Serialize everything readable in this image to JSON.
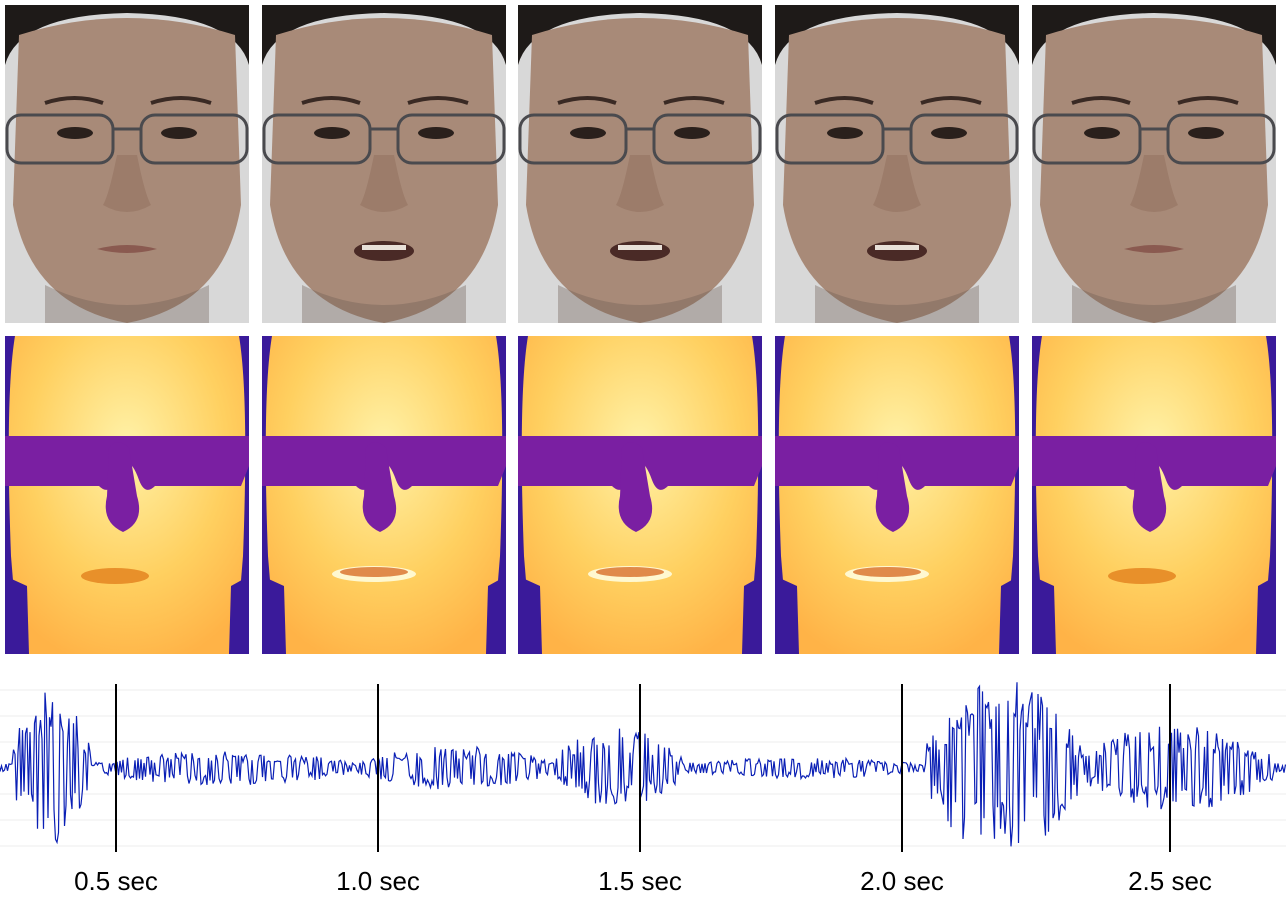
{
  "frames": {
    "count": 5,
    "rgb_row": [
      "face-rgb-1",
      "face-rgb-2",
      "face-rgb-3",
      "face-rgb-4",
      "face-rgb-5"
    ],
    "thermal_row": [
      "face-thermal-1",
      "face-thermal-2",
      "face-thermal-3",
      "face-thermal-4",
      "face-thermal-5"
    ],
    "mouth_open": [
      false,
      true,
      true,
      true,
      false
    ]
  },
  "waveform": {
    "color": "#0a1fb5",
    "marker_color": "#000000",
    "time_markers": [
      {
        "t": 0.5,
        "label": "0.5 sec"
      },
      {
        "t": 1.0,
        "label": "1.0 sec"
      },
      {
        "t": 1.5,
        "label": "1.5 sec"
      },
      {
        "t": 2.0,
        "label": "2.0 sec"
      },
      {
        "t": 2.5,
        "label": "2.5 sec"
      }
    ],
    "bursts": [
      {
        "start": 0.01,
        "end": 0.07,
        "amp": 0.9
      },
      {
        "start": 0.07,
        "end": 0.28,
        "amp": 0.2
      },
      {
        "start": 0.28,
        "end": 0.43,
        "amp": 0.25
      },
      {
        "start": 0.43,
        "end": 0.53,
        "amp": 0.45
      },
      {
        "start": 0.53,
        "end": 0.72,
        "amp": 0.12
      },
      {
        "start": 0.72,
        "end": 0.84,
        "amp": 1.0
      },
      {
        "start": 0.84,
        "end": 0.99,
        "amp": 0.5
      }
    ]
  },
  "colors": {
    "skin": "#a88a78",
    "background": "#d8d8d8",
    "hair": "#1e1a18",
    "thermal_hot": "#fff2a8",
    "thermal_warm": "#ffb347",
    "thermal_cold": "#7a1fa2",
    "thermal_bg": "#3a1a9a"
  }
}
